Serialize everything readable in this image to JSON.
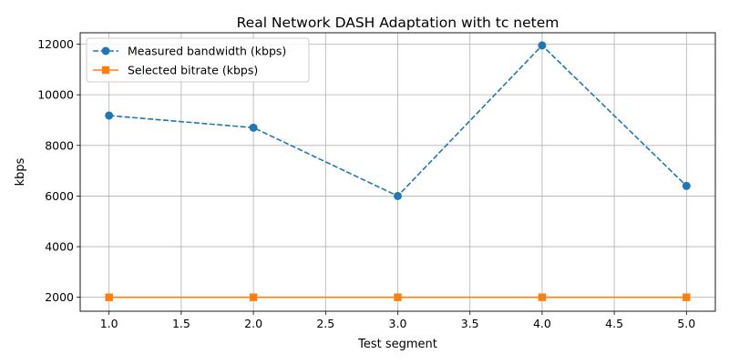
{
  "chart_data": {
    "type": "line",
    "title": "Real Network DASH Adaptation with tc netem",
    "xlabel": "Test segment",
    "ylabel": "kbps",
    "x": [
      1,
      2,
      3,
      4,
      5
    ],
    "xlim": [
      0.8,
      5.2
    ],
    "ylim": [
      1450,
      12450
    ],
    "xticks": [
      1.0,
      1.5,
      2.0,
      2.5,
      3.0,
      3.5,
      4.0,
      4.5,
      5.0
    ],
    "xtick_labels": [
      "1.0",
      "1.5",
      "2.0",
      "2.5",
      "3.0",
      "3.5",
      "4.0",
      "4.5",
      "5.0"
    ],
    "yticks": [
      2000,
      4000,
      6000,
      8000,
      10000,
      12000
    ],
    "ytick_labels": [
      "2000",
      "4000",
      "6000",
      "8000",
      "10000",
      "12000"
    ],
    "grid": true,
    "legend_position": "upper-left",
    "series": [
      {
        "name": "Measured bandwidth (kbps)",
        "values": [
          9180,
          8700,
          6000,
          11950,
          6400
        ],
        "color": "#1f77b4",
        "line_style": "dashed",
        "marker": "circle"
      },
      {
        "name": "Selected bitrate (kbps)",
        "values": [
          2000,
          2000,
          2000,
          2000,
          2000
        ],
        "color": "#ff7f0e",
        "line_style": "solid",
        "marker": "square"
      }
    ]
  }
}
